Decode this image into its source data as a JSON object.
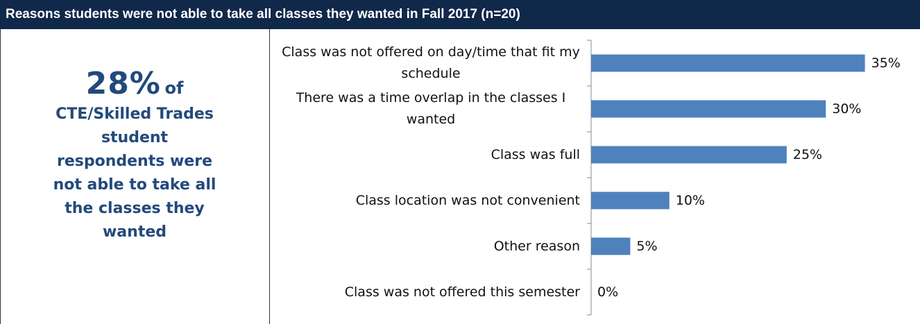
{
  "title": "Reasons students were not able to take all classes they wanted in Fall 2017 (n=20)",
  "callout": {
    "figure": "28%",
    "suffix": "of",
    "text": "CTE/Skilled Trades student respondents were not able to take all the classes they wanted"
  },
  "chart_data": {
    "type": "bar",
    "orientation": "horizontal",
    "categories": [
      "Class was not offered on day/time that fit my schedule",
      "There was a time overlap in the classes I wanted",
      "Class was full",
      "Class location was not convenient",
      "Other reason",
      "Class was not offered this semester"
    ],
    "values": [
      35,
      30,
      25,
      10,
      5,
      0
    ],
    "value_labels": [
      "35%",
      "30%",
      "25%",
      "10%",
      "5%",
      "0%"
    ],
    "color": "#4f81bd",
    "xlim": [
      0,
      40
    ]
  }
}
